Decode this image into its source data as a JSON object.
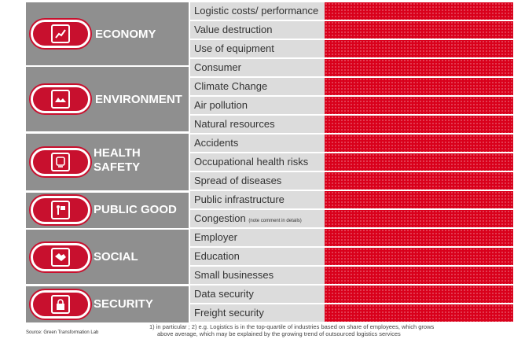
{
  "categories": [
    {
      "label_lines": [
        "ECONOMY"
      ],
      "icon": "chart-icon"
    },
    {
      "label_lines": [
        "ENVIRONMENT"
      ],
      "icon": "landscape-icon"
    },
    {
      "label_lines": [
        "HEALTH",
        "SAFETY"
      ],
      "icon": "train-icon"
    },
    {
      "label_lines": [
        "PUBLIC GOOD"
      ],
      "icon": "person-sign-icon"
    },
    {
      "label_lines": [
        "SOCIAL"
      ],
      "icon": "handshake-icon"
    },
    {
      "label_lines": [
        "SECURITY"
      ],
      "icon": "lock-icon"
    }
  ],
  "rows": [
    {
      "label": "Logistic costs/ performance"
    },
    {
      "label": "Value destruction"
    },
    {
      "label": "Use of equipment"
    },
    {
      "label": "Consumer"
    },
    {
      "label": "Climate Change"
    },
    {
      "label": "Air pollution"
    },
    {
      "label": "Natural resources"
    },
    {
      "label": "Accidents"
    },
    {
      "label": "Occupational health risks"
    },
    {
      "label": "Spread of diseases"
    },
    {
      "label": "Public infrastructure"
    },
    {
      "label": "Congestion",
      "note": "(note comment in details)"
    },
    {
      "label": "Employer"
    },
    {
      "label": "Education"
    },
    {
      "label": "Small businesses"
    },
    {
      "label": "Data security"
    },
    {
      "label": "Freight security"
    }
  ],
  "footnote": {
    "line1": "1) in particular ; 2) e.g. Logistics is in the top-quartile of industries based on share of employees, which grows",
    "line2": "above average, which may be explained by the growing trend of outsourced logistics services"
  },
  "source": "Source: Green Transformation Lab",
  "colors": {
    "accent": "#d9001b",
    "category_bg": "#8f8f8f",
    "row_bg": "#dcdcdc"
  }
}
